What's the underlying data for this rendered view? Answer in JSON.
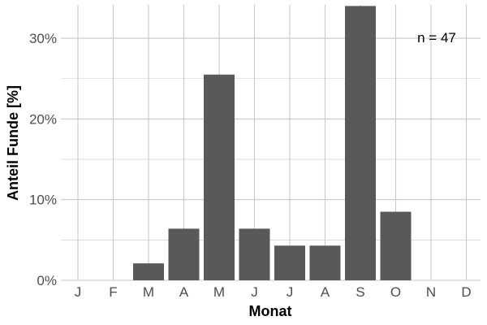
{
  "chart_data": {
    "type": "bar",
    "title": "",
    "xlabel": "Monat",
    "ylabel": "Anteil Funde [%]",
    "categories": [
      "J",
      "F",
      "M",
      "A",
      "M",
      "J",
      "J",
      "A",
      "S",
      "O",
      "N",
      "D"
    ],
    "values": [
      0,
      0,
      2.1,
      6.4,
      25.5,
      6.4,
      4.3,
      4.3,
      34.0,
      8.5,
      0,
      0
    ],
    "y_ticks": [
      0,
      10,
      20,
      30
    ],
    "y_tick_labels": [
      "0%",
      "10%",
      "20%",
      "30%"
    ],
    "ylim": [
      0,
      34
    ],
    "grid": true,
    "legend": "none",
    "bar_color": "#595959",
    "grid_color": "#c8c8c8",
    "annotation": "n = 47"
  }
}
